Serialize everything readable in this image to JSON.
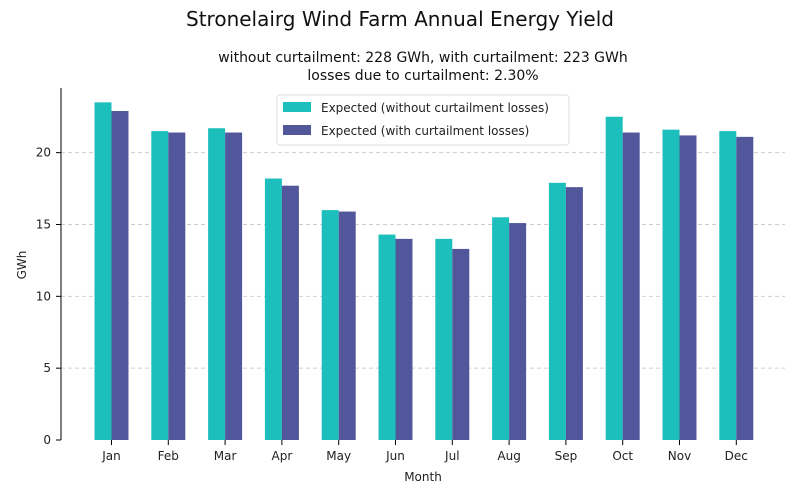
{
  "chart_data": {
    "type": "bar",
    "title": "Stronelairg Wind Farm Annual Energy Yield",
    "subtitle_lines": [
      "without curtailment: 228 GWh, with curtailment: 223 GWh",
      "losses due to curtailment: 2.30%"
    ],
    "xlabel": "Month",
    "ylabel": "GWh",
    "ylim": [
      0,
      24.5
    ],
    "yticks": [
      0,
      5,
      10,
      15,
      20
    ],
    "grid": "horizontal, dashed",
    "legend_position": "top-center",
    "categories": [
      "Jan",
      "Feb",
      "Mar",
      "Apr",
      "May",
      "Jun",
      "Jul",
      "Aug",
      "Sep",
      "Oct",
      "Nov",
      "Dec"
    ],
    "series": [
      {
        "name": "Expected (without curtailment losses)",
        "color": "#1cbfbb",
        "values": [
          23.5,
          21.5,
          21.7,
          18.2,
          16.0,
          14.3,
          14.0,
          15.5,
          17.9,
          22.5,
          21.6,
          21.5
        ]
      },
      {
        "name": "Expected (with curtailment losses)",
        "color": "#52579b",
        "values": [
          22.9,
          21.4,
          21.4,
          17.7,
          15.9,
          14.0,
          13.3,
          15.1,
          17.6,
          21.4,
          21.2,
          21.1
        ]
      }
    ]
  }
}
